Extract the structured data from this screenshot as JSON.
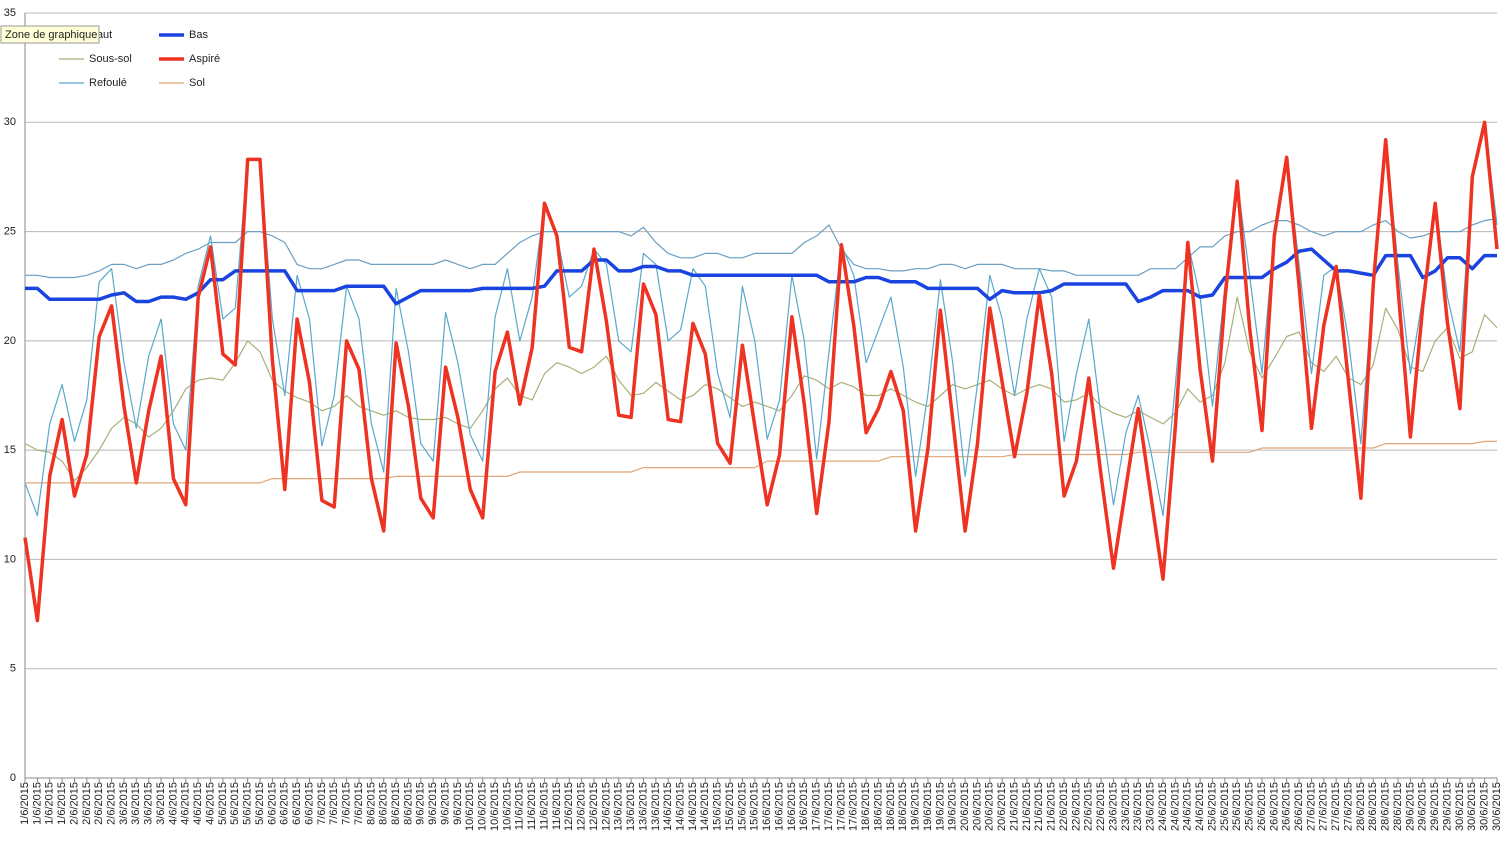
{
  "chart_data": {
    "type": "line",
    "tooltip": "Zone de graphique",
    "categories": [
      "1/6/2015",
      "1/6/2015",
      "1/6/2015",
      "1/6/2015",
      "2/6/2015",
      "2/6/2015",
      "2/6/2015",
      "2/6/2015",
      "3/6/2015",
      "3/6/2015",
      "3/6/2015",
      "3/6/2015",
      "4/6/2015",
      "4/6/2015",
      "4/6/2015",
      "4/6/2015",
      "5/6/2015",
      "5/6/2015",
      "5/6/2015",
      "5/6/2015",
      "6/6/2015",
      "6/6/2015",
      "6/6/2015",
      "6/6/2015",
      "7/6/2015",
      "7/6/2015",
      "7/6/2015",
      "7/6/2015",
      "8/6/2015",
      "8/6/2015",
      "8/6/2015",
      "8/6/2015",
      "9/6/2015",
      "9/6/2015",
      "9/6/2015",
      "9/6/2015",
      "10/6/2015",
      "10/6/2015",
      "10/6/2015",
      "10/6/2015",
      "11/6/2015",
      "11/6/2015",
      "11/6/2015",
      "11/6/2015",
      "12/6/2015",
      "12/6/2015",
      "12/6/2015",
      "12/6/2015",
      "13/6/2015",
      "13/6/2015",
      "13/6/2015",
      "13/6/2015",
      "14/6/2015",
      "14/6/2015",
      "14/6/2015",
      "14/6/2015",
      "15/6/2015",
      "15/6/2015",
      "15/6/2015",
      "15/6/2015",
      "16/6/2015",
      "16/6/2015",
      "16/6/2015",
      "16/6/2015",
      "17/6/2015",
      "17/6/2015",
      "17/6/2015",
      "17/6/2015",
      "18/6/2015",
      "18/6/2015",
      "18/6/2015",
      "18/6/2015",
      "19/6/2015",
      "19/6/2015",
      "19/6/2015",
      "19/6/2015",
      "20/6/2015",
      "20/6/2015",
      "20/6/2015",
      "20/6/2015",
      "21/6/2015",
      "21/6/2015",
      "21/6/2015",
      "21/6/2015",
      "22/6/2015",
      "22/6/2015",
      "22/6/2015",
      "22/6/2015",
      "23/6/2015",
      "23/6/2015",
      "23/6/2015",
      "23/6/2015",
      "24/6/2015",
      "24/6/2015",
      "24/6/2015",
      "24/6/2015",
      "25/6/2015",
      "25/6/2015",
      "25/6/2015",
      "25/6/2015",
      "26/6/2015",
      "26/6/2015",
      "26/6/2015",
      "26/6/2015",
      "27/6/2015",
      "27/6/2015",
      "27/6/2015",
      "27/6/2015",
      "28/6/2015",
      "28/6/2015",
      "28/6/2015",
      "28/6/2015",
      "29/6/2015",
      "29/6/2015",
      "29/6/2015",
      "29/6/2015",
      "30/6/2015",
      "30/6/2015",
      "30/6/2015",
      "30/6/2015"
    ],
    "series": [
      {
        "name": "Haut",
        "color": "#6a9fc2",
        "width": 1.2,
        "values": [
          23,
          23,
          22.9,
          22.9,
          22.9,
          23,
          23.2,
          23.5,
          23.5,
          23.3,
          23.5,
          23.5,
          23.7,
          24,
          24.2,
          24.5,
          24.5,
          24.5,
          25,
          25,
          24.8,
          24.5,
          23.5,
          23.3,
          23.3,
          23.5,
          23.7,
          23.7,
          23.5,
          23.5,
          23.5,
          23.5,
          23.5,
          23.5,
          23.7,
          23.5,
          23.3,
          23.5,
          23.5,
          24,
          24.5,
          24.8,
          25,
          25,
          25,
          25,
          25,
          25,
          25,
          24.8,
          25.2,
          24.5,
          24,
          23.8,
          23.8,
          24,
          24,
          23.8,
          23.8,
          24,
          24,
          24,
          24,
          24.5,
          24.8,
          25.3,
          24.2,
          23.5,
          23.3,
          23.3,
          23.2,
          23.2,
          23.3,
          23.3,
          23.5,
          23.5,
          23.3,
          23.5,
          23.5,
          23.5,
          23.3,
          23.3,
          23.3,
          23.2,
          23.2,
          23,
          23,
          23,
          23,
          23,
          23,
          23.3,
          23.3,
          23.3,
          23.8,
          24.3,
          24.3,
          24.8,
          25,
          25,
          25.3,
          25.5,
          25.5,
          25.3,
          25,
          24.8,
          25,
          25,
          25,
          25.3,
          25.5,
          25,
          24.7,
          24.8,
          25,
          25,
          25,
          25.3,
          25.5,
          25.6
        ]
      },
      {
        "name": "Bas",
        "color": "#1a44e0",
        "width": 3.5,
        "values": [
          22.4,
          22.4,
          21.9,
          21.9,
          21.9,
          21.9,
          21.9,
          22.1,
          22.2,
          21.8,
          21.8,
          22,
          22,
          21.9,
          22.2,
          22.8,
          22.8,
          23.2,
          23.2,
          23.2,
          23.2,
          23.2,
          22.3,
          22.3,
          22.3,
          22.3,
          22.5,
          22.5,
          22.5,
          22.5,
          21.7,
          22,
          22.3,
          22.3,
          22.3,
          22.3,
          22.3,
          22.4,
          22.4,
          22.4,
          22.4,
          22.4,
          22.5,
          23.2,
          23.2,
          23.2,
          23.7,
          23.7,
          23.2,
          23.2,
          23.4,
          23.4,
          23.2,
          23.2,
          23,
          23,
          23,
          23,
          23,
          23,
          23,
          23,
          23,
          23,
          23,
          22.7,
          22.7,
          22.7,
          22.9,
          22.9,
          22.7,
          22.7,
          22.7,
          22.4,
          22.4,
          22.4,
          22.4,
          22.4,
          21.9,
          22.3,
          22.2,
          22.2,
          22.2,
          22.3,
          22.6,
          22.6,
          22.6,
          22.6,
          22.6,
          22.6,
          21.8,
          22,
          22.3,
          22.3,
          22.3,
          22,
          22.1,
          22.9,
          22.9,
          22.9,
          22.9,
          23.3,
          23.6,
          24.1,
          24.2,
          23.7,
          23.2,
          23.2,
          23.1,
          23,
          23.9,
          23.9,
          23.9,
          22.9,
          23.2,
          23.8,
          23.8,
          23.3,
          23.9,
          23.9
        ]
      },
      {
        "name": "Sous-sol",
        "color": "#a8b078",
        "width": 1.2,
        "values": [
          15.3,
          15,
          14.9,
          14.5,
          13.6,
          14.2,
          15,
          16,
          16.5,
          16.2,
          15.6,
          16,
          16.8,
          17.8,
          18.2,
          18.3,
          18.2,
          19,
          20,
          19.5,
          18.2,
          17.7,
          17.4,
          17.2,
          16.8,
          17,
          17.5,
          17,
          16.8,
          16.6,
          16.8,
          16.5,
          16.4,
          16.4,
          16.5,
          16.2,
          16,
          16.8,
          17.8,
          18.3,
          17.5,
          17.3,
          18.5,
          19,
          18.8,
          18.5,
          18.8,
          19.3,
          18.2,
          17.5,
          17.6,
          18.1,
          17.7,
          17.3,
          17.5,
          18,
          17.8,
          17.4,
          17,
          17.2,
          17,
          16.8,
          17.5,
          18.4,
          18.2,
          17.8,
          18.1,
          17.9,
          17.5,
          17.5,
          17.8,
          17.5,
          17.2,
          17,
          17.5,
          18,
          17.8,
          18,
          18.2,
          17.8,
          17.5,
          17.8,
          18,
          17.8,
          17.2,
          17.3,
          17.6,
          17,
          16.7,
          16.5,
          16.8,
          16.5,
          16.2,
          16.7,
          17.8,
          17.2,
          17.5,
          19,
          22,
          19.5,
          18.3,
          19.2,
          20.2,
          20.4,
          19,
          18.6,
          19.3,
          18.3,
          18,
          18.9,
          21.5,
          20.5,
          18.8,
          18.6,
          20,
          20.6,
          19.2,
          19.5,
          21.2,
          20.6
        ]
      },
      {
        "name": "Aspiré",
        "color": "#ee3322",
        "width": 3.5,
        "values": [
          11,
          7.2,
          13.8,
          16.4,
          12.9,
          14.8,
          20.2,
          21.6,
          17,
          13.5,
          16.8,
          19.3,
          13.7,
          12.5,
          22,
          24.3,
          19.4,
          18.9,
          28.3,
          28.3,
          19.1,
          13.2,
          21,
          18.1,
          12.7,
          12.4,
          20,
          18.7,
          13.7,
          11.3,
          19.9,
          17,
          12.8,
          11.9,
          18.8,
          16.5,
          13.2,
          11.9,
          18.6,
          20.4,
          17.1,
          19.7,
          26.3,
          24.8,
          19.7,
          19.5,
          24.2,
          20.9,
          16.6,
          16.5,
          22.6,
          21.2,
          16.4,
          16.3,
          20.8,
          19.4,
          15.3,
          14.4,
          19.8,
          16.1,
          12.5,
          14.8,
          21.1,
          17.1,
          12.1,
          16.3,
          24.4,
          20.7,
          15.8,
          16.9,
          18.6,
          16.8,
          11.3,
          15.1,
          21.4,
          16.4,
          11.3,
          15.3,
          21.5,
          18.1,
          14.7,
          17.6,
          22.1,
          18.5,
          12.9,
          14.5,
          18.3,
          13.8,
          9.6,
          13.3,
          16.9,
          13,
          9.1,
          16.1,
          24.5,
          18.7,
          14.5,
          21.9,
          27.3,
          20.6,
          15.9,
          24.8,
          28.4,
          22.5,
          16,
          20.7,
          23.4,
          18.1,
          12.8,
          22.6,
          29.2,
          22.4,
          15.6,
          21.6,
          26.3,
          20.8,
          16.9,
          27.5,
          30,
          24.2
        ]
      },
      {
        "name": "Refoulé",
        "color": "#5aa8cc",
        "width": 1.2,
        "values": [
          13.5,
          12,
          16.2,
          18,
          15.4,
          17.3,
          22.7,
          23.3,
          19,
          16,
          19.3,
          21,
          16.2,
          15,
          22.5,
          24.8,
          21,
          21.5,
          28.3,
          28.3,
          21,
          17.5,
          23,
          21,
          15.2,
          17.5,
          22.5,
          21,
          16.2,
          14,
          22.4,
          19.5,
          15.3,
          14.5,
          21.3,
          19,
          15.7,
          14.5,
          21.1,
          23.3,
          20,
          22,
          26.3,
          24.8,
          22,
          22.5,
          24.2,
          23.5,
          20,
          19.5,
          24,
          23.5,
          20,
          20.5,
          23.3,
          22.5,
          18.5,
          16.5,
          22.5,
          20,
          15.5,
          17.3,
          23,
          20,
          14.6,
          19.5,
          24.4,
          23,
          19,
          20.5,
          22,
          18.8,
          13.8,
          17.6,
          22.8,
          19,
          13.8,
          18,
          23,
          21,
          17.5,
          21,
          23.3,
          22,
          15.4,
          18.5,
          21,
          16.5,
          12.5,
          15.8,
          17.5,
          15,
          12,
          18,
          24.5,
          22,
          17,
          22.5,
          27.3,
          23,
          18.5,
          24.8,
          28.4,
          23.5,
          18.5,
          23,
          23.4,
          20,
          15.3,
          22.6,
          29.2,
          23.5,
          18.5,
          22,
          26.3,
          22,
          19.5,
          27.5,
          30,
          25.3
        ]
      },
      {
        "name": "Sol",
        "color": "#e0a878",
        "width": 1.2,
        "values": [
          13.5,
          13.5,
          13.5,
          13.5,
          13.5,
          13.5,
          13.5,
          13.5,
          13.5,
          13.5,
          13.5,
          13.5,
          13.5,
          13.5,
          13.5,
          13.5,
          13.5,
          13.5,
          13.5,
          13.5,
          13.7,
          13.7,
          13.7,
          13.7,
          13.7,
          13.7,
          13.7,
          13.7,
          13.7,
          13.7,
          13.8,
          13.8,
          13.8,
          13.8,
          13.8,
          13.8,
          13.8,
          13.8,
          13.8,
          13.8,
          14,
          14,
          14,
          14,
          14,
          14,
          14,
          14,
          14,
          14,
          14.2,
          14.2,
          14.2,
          14.2,
          14.2,
          14.2,
          14.2,
          14.2,
          14.2,
          14.2,
          14.5,
          14.5,
          14.5,
          14.5,
          14.5,
          14.5,
          14.5,
          14.5,
          14.5,
          14.5,
          14.7,
          14.7,
          14.7,
          14.7,
          14.7,
          14.7,
          14.7,
          14.7,
          14.7,
          14.7,
          14.8,
          14.8,
          14.8,
          14.8,
          14.8,
          14.8,
          14.8,
          14.8,
          14.8,
          14.8,
          14.9,
          14.9,
          14.9,
          14.9,
          14.9,
          14.9,
          14.9,
          14.9,
          14.9,
          14.9,
          15.1,
          15.1,
          15.1,
          15.1,
          15.1,
          15.1,
          15.1,
          15.1,
          15.1,
          15.1,
          15.3,
          15.3,
          15.3,
          15.3,
          15.3,
          15.3,
          15.3,
          15.3,
          15.4,
          15.4
        ]
      }
    ],
    "draw_order": [
      5,
      2,
      0,
      4,
      1,
      3
    ],
    "ylim": [
      0,
      35
    ],
    "yticks": [
      0,
      5,
      10,
      15,
      20,
      25,
      30,
      35
    ],
    "grid": true,
    "legend": "upper left"
  }
}
